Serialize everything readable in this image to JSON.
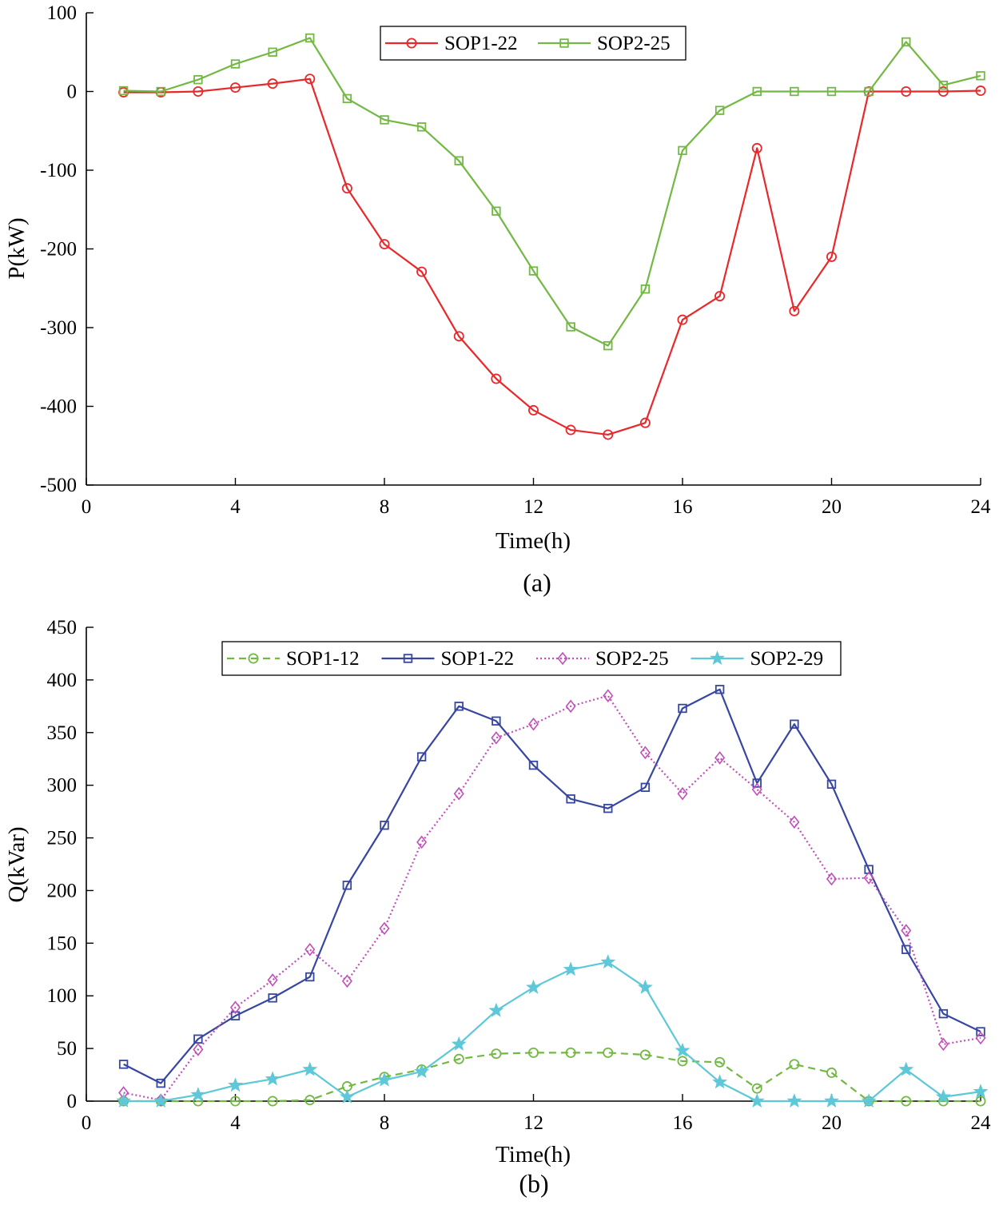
{
  "chart_data": [
    {
      "type": "line",
      "panel_label": "(a)",
      "xlabel": "Time(h)",
      "ylabel": "P(kW)",
      "xlim": [
        0,
        24
      ],
      "ylim": [
        -500,
        100
      ],
      "xticks": [
        0,
        4,
        8,
        12,
        16,
        20,
        24
      ],
      "yticks": [
        -500,
        -400,
        -300,
        -200,
        -100,
        0,
        100
      ],
      "grid": false,
      "legend_position": "top-center",
      "x": [
        1,
        2,
        3,
        4,
        5,
        6,
        7,
        8,
        9,
        10,
        11,
        12,
        13,
        14,
        15,
        16,
        17,
        18,
        19,
        20,
        21,
        22,
        23,
        24
      ],
      "series": [
        {
          "name": "SOP1-22",
          "color": "#e8282b",
          "marker": "circle",
          "line_style": "solid",
          "values": [
            -1,
            -1,
            0,
            5,
            10,
            16,
            -123,
            -194,
            -229,
            -311,
            -365,
            -405,
            -430,
            -436,
            -421,
            -290,
            -260,
            -72,
            -279,
            -210,
            0,
            0,
            0,
            1
          ]
        },
        {
          "name": "SOP2-25",
          "color": "#72b843",
          "marker": "square",
          "line_style": "solid",
          "values": [
            1,
            0,
            15,
            35,
            50,
            68,
            -9,
            -36,
            -45,
            -88,
            -152,
            -228,
            -299,
            -323,
            -251,
            -75,
            -24,
            0,
            0,
            0,
            0,
            63,
            8,
            20
          ]
        }
      ]
    },
    {
      "type": "line",
      "panel_label": "(b)",
      "xlabel": "Time(h)",
      "ylabel": "Q(kVar)",
      "xlim": [
        0,
        24
      ],
      "ylim": [
        0,
        450
      ],
      "xticks": [
        0,
        4,
        8,
        12,
        16,
        20,
        24
      ],
      "yticks": [
        0,
        50,
        100,
        150,
        200,
        250,
        300,
        350,
        400,
        450
      ],
      "grid": false,
      "legend_position": "top-center",
      "x": [
        1,
        2,
        3,
        4,
        5,
        6,
        7,
        8,
        9,
        10,
        11,
        12,
        13,
        14,
        15,
        16,
        17,
        18,
        19,
        20,
        21,
        22,
        23,
        24
      ],
      "series": [
        {
          "name": "SOP1-12",
          "color": "#72b843",
          "marker": "circle",
          "line_style": "dashed",
          "values": [
            0,
            0,
            0,
            0,
            0,
            1,
            14,
            23,
            30,
            40,
            45,
            46,
            46,
            46,
            44,
            38,
            37,
            12,
            35,
            27,
            0,
            0,
            0,
            0
          ]
        },
        {
          "name": "SOP1-22",
          "color": "#3747a0",
          "marker": "square",
          "line_style": "solid",
          "values": [
            35,
            17,
            59,
            81,
            98,
            118,
            205,
            262,
            327,
            375,
            361,
            319,
            287,
            278,
            298,
            373,
            391,
            302,
            358,
            301,
            220,
            144,
            83,
            66
          ]
        },
        {
          "name": "SOP2-25",
          "color": "#c14fb8",
          "marker": "diamond",
          "line_style": "dotted",
          "values": [
            8,
            1,
            49,
            89,
            115,
            144,
            114,
            164,
            246,
            292,
            345,
            358,
            375,
            385,
            331,
            292,
            326,
            296,
            265,
            211,
            212,
            162,
            54,
            60
          ]
        },
        {
          "name": "SOP2-29",
          "color": "#5dc8d8",
          "marker": "star",
          "line_style": "solid",
          "values": [
            0,
            0,
            6,
            15,
            21,
            30,
            4,
            20,
            28,
            54,
            86,
            108,
            125,
            132,
            108,
            48,
            18,
            0,
            0,
            0,
            0,
            30,
            4,
            9
          ]
        }
      ]
    }
  ]
}
